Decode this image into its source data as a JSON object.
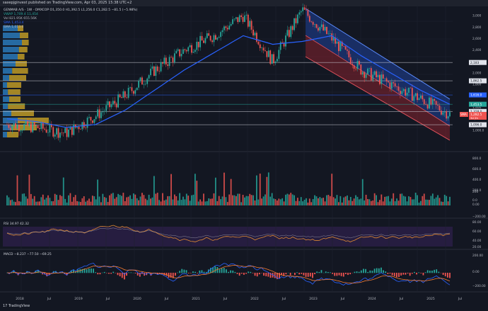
{
  "header": {
    "published_line": "saxepjginvest published on TradingView.com, Apr 03, 2025 15:38 UTC+2"
  },
  "legend": {
    "symbol_line": "GENMAB A/S · 1W · OMXCOP  O1,350.0  H1,392.5  L1,256.0  C1,282.5  −81.5 (−5.98%)",
    "vwap_line": "VWAP  1,709.4  11,454",
    "vol_line": "Vol  821.95K  655.56K",
    "sma1_line": "SMA  1,453.4",
    "sma2_line": "SMA  1,013.6"
  },
  "price_axis": {
    "ticks": [
      "3,000",
      "2,800",
      "2,600",
      "2,400",
      "2,183",
      "2,000",
      "1,800",
      "1,600",
      "1,400",
      "1,200",
      "1,000.0"
    ],
    "ticks_low": [
      "1,000.0",
      "800.0",
      "600.0",
      "400.0",
      "200.0",
      "0.0"
    ],
    "vol_ticks": [
      "200",
      "0.00",
      "−200.00"
    ],
    "rsi_ticks": [
      "80.00",
      "60.00",
      "40.00",
      "20.00"
    ],
    "macd_ticks": [
      "200.00",
      "0.00",
      "−200.00"
    ]
  },
  "price_labels": {
    "l2183": "2,183",
    "l1862": "1,862.5",
    "l1616": "1,616.0",
    "l1453": "1,453.5",
    "l1328": "1,328.0",
    "l1282": "1,282.5",
    "l1282_time": "3d 2h",
    "l1096": "1,096.0",
    "sma_badge": "SMA"
  },
  "rsi": {
    "label": "RSI  34.97  42.32"
  },
  "macd": {
    "label": "MACD  −8.237  −77.50  −69.25"
  },
  "time_axis": [
    "2018",
    "Jul",
    "2019",
    "Jul",
    "2020",
    "Jul",
    "2021",
    "Jul",
    "2022",
    "Jul",
    "2023",
    "Jul",
    "2024",
    "Jul",
    "2025",
    "Jul"
  ],
  "footer": {
    "brand": "17 TradingView"
  },
  "chart_data": {
    "type": "line",
    "title": "GENMAB A/S · 1W · OMXCOP",
    "x": [
      "2018",
      "Jul 2018",
      "2019",
      "Jul 2019",
      "2020",
      "Jul 2020",
      "2021",
      "Jul 2021",
      "2022",
      "Jul 2022",
      "2023",
      "Jul 2023",
      "2024",
      "Jul 2024",
      "2025",
      "Apr 2025"
    ],
    "series": [
      {
        "name": "Price",
        "values": [
          1100,
          1050,
          950,
          1250,
          1600,
          2050,
          2400,
          2650,
          3000,
          2200,
          3100,
          2600,
          2050,
          1800,
          1550,
          1282.5
        ]
      },
      {
        "name": "SMA",
        "values": [
          1200,
          1150,
          1050,
          1100,
          1350,
          1700,
          2050,
          2350,
          2650,
          2500,
          2550,
          2650,
          2300,
          2000,
          1700,
          1453.4
        ]
      }
    ],
    "ylim": [
      800,
      3150
    ],
    "horizontal_levels": [
      2183,
      1862.5,
      1616,
      1453.5,
      1328,
      1282.5,
      1096
    ]
  }
}
